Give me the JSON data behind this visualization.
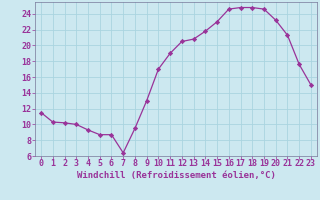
{
  "x": [
    0,
    1,
    2,
    3,
    4,
    5,
    6,
    7,
    8,
    9,
    10,
    11,
    12,
    13,
    14,
    15,
    16,
    17,
    18,
    19,
    20,
    21,
    22,
    23
  ],
  "y": [
    11.5,
    10.3,
    10.2,
    10.0,
    9.3,
    8.7,
    8.7,
    6.4,
    9.5,
    13.0,
    17.0,
    19.0,
    20.5,
    20.8,
    21.8,
    23.0,
    24.6,
    24.8,
    24.8,
    24.6,
    23.2,
    21.3,
    17.6,
    15.0
  ],
  "line_color": "#993399",
  "marker": "D",
  "marker_size": 2.2,
  "bg_color": "#cce8f0",
  "grid_color": "#aad4e0",
  "xlabel": "Windchill (Refroidissement éolien,°C)",
  "xlabel_color": "#993399",
  "xlabel_fontsize": 6.5,
  "tick_color": "#993399",
  "tick_fontsize": 6.0,
  "ylim": [
    6,
    25.5
  ],
  "yticks": [
    6,
    8,
    10,
    12,
    14,
    16,
    18,
    20,
    22,
    24
  ],
  "xlim": [
    -0.5,
    23.5
  ],
  "xticks": [
    0,
    1,
    2,
    3,
    4,
    5,
    6,
    7,
    8,
    9,
    10,
    11,
    12,
    13,
    14,
    15,
    16,
    17,
    18,
    19,
    20,
    21,
    22,
    23
  ]
}
